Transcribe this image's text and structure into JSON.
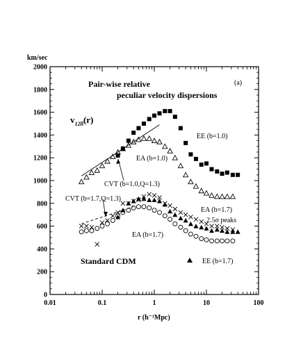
{
  "chart_data": {
    "type": "scatter",
    "title": "Pair-wise relative peculiar velocity dispersions",
    "title_lines": [
      "Pair-wise relative",
      "peculiar velocity dispersions"
    ],
    "panel_label": "(a)",
    "ylabel": "v12ll(r)",
    "ylabel_main": "v",
    "ylabel_sub": "12ll",
    "ylabel_tail": "(r)",
    "y_unit": "km/sec",
    "xlabel": "r (h⁻¹Mpc)",
    "xscale": "log",
    "xlim": [
      0.01,
      100
    ],
    "ylim": [
      0,
      2000
    ],
    "x_ticks": [
      "0.01",
      "0.1",
      "1",
      "10",
      "100"
    ],
    "y_ticks": [
      "0",
      "200",
      "400",
      "600",
      "800",
      "1000",
      "1200",
      "1400",
      "1600",
      "1800",
      "2000"
    ],
    "model_label": "Standard CDM",
    "series": [
      {
        "name": "EE (b=1.0)",
        "marker": "filled-square",
        "x": [
          0.2,
          0.25,
          0.32,
          0.4,
          0.5,
          0.63,
          0.8,
          1.0,
          1.26,
          1.6,
          2.0,
          2.5,
          3.2,
          4.0,
          5.0,
          6.3,
          8.0,
          10.0,
          12.6,
          16.0,
          20.0,
          25.0,
          32.0,
          40.0
        ],
        "y": [
          1220,
          1280,
          1350,
          1420,
          1460,
          1500,
          1540,
          1570,
          1590,
          1610,
          1610,
          1560,
          1460,
          1330,
          1230,
          1190,
          1140,
          1150,
          1100,
          1080,
          1060,
          1070,
          1050,
          1050
        ]
      },
      {
        "name": "EA (b=1.0)",
        "marker": "open-triangle",
        "x": [
          0.04,
          0.05,
          0.063,
          0.08,
          0.1,
          0.126,
          0.16,
          0.2,
          0.25,
          0.32,
          0.4,
          0.5,
          0.63,
          0.8,
          1.0,
          1.26,
          1.6,
          2.0,
          2.5,
          3.2,
          4.0,
          5.0,
          6.3,
          8.0,
          10.0,
          12.6,
          16.0,
          20.0,
          25.0,
          32.0
        ],
        "y": [
          990,
          1030,
          1070,
          1090,
          1130,
          1170,
          1210,
          1250,
          1280,
          1310,
          1340,
          1360,
          1370,
          1370,
          1350,
          1340,
          1300,
          1260,
          1200,
          1130,
          1050,
          990,
          950,
          910,
          890,
          870,
          860,
          860,
          860,
          860
        ]
      },
      {
        "name": "EE (b=1.7)",
        "marker": "filled-triangle",
        "x": [
          0.2,
          0.25,
          0.32,
          0.4,
          0.5,
          0.63,
          0.8,
          1.0,
          1.26,
          1.6,
          2.0,
          2.5,
          3.2,
          4.0,
          5.0,
          6.3,
          8.0,
          10.0,
          12.6,
          16.0,
          20.0,
          25.0,
          32.0,
          40.0
        ],
        "y": [
          680,
          740,
          800,
          820,
          840,
          840,
          830,
          830,
          820,
          790,
          730,
          700,
          670,
          650,
          620,
          600,
          590,
          580,
          560,
          570,
          560,
          550,
          550,
          550
        ]
      },
      {
        "name": "EA (b=1.7)",
        "marker": "open-circle",
        "x": [
          0.04,
          0.05,
          0.063,
          0.08,
          0.1,
          0.126,
          0.16,
          0.2,
          0.25,
          0.32,
          0.4,
          0.5,
          0.63,
          0.8,
          1.0,
          1.26,
          1.6,
          2.0,
          2.5,
          3.2,
          4.0,
          5.0,
          6.3,
          8.0,
          10.0,
          12.6,
          16.0,
          20.0,
          25.0,
          32.0
        ],
        "y": [
          550,
          560,
          560,
          580,
          600,
          620,
          650,
          690,
          720,
          740,
          760,
          770,
          770,
          760,
          740,
          720,
          690,
          660,
          620,
          590,
          560,
          530,
          510,
          490,
          480,
          470,
          470,
          470,
          470,
          470
        ]
      },
      {
        "name": "2.5σ peaks",
        "marker": "cross",
        "x": [
          0.04,
          0.05,
          0.063,
          0.08,
          0.1,
          0.126,
          0.16,
          0.2,
          0.25,
          0.32,
          0.4,
          0.5,
          0.63,
          0.8,
          1.0,
          1.26,
          1.6,
          2.0,
          2.5,
          3.2,
          4.0,
          5.0,
          6.3,
          8.0,
          10.0,
          12.6,
          16.0,
          20.0,
          25.0,
          32.0
        ],
        "y": [
          600,
          600,
          590,
          440,
          630,
          650,
          690,
          720,
          800,
          800,
          820,
          830,
          860,
          880,
          870,
          850,
          800,
          780,
          750,
          720,
          700,
          680,
          660,
          640,
          620,
          600,
          600,
          590,
          580,
          570
        ]
      }
    ],
    "fit_lines": [
      {
        "name": "CVT (b=1.0,Q=1.3)",
        "style": "solid",
        "x": [
          0.04,
          0.063,
          0.1,
          0.16,
          0.25,
          0.4,
          0.63,
          1.0,
          1.26
        ],
        "y": [
          1040,
          1100,
          1160,
          1220,
          1280,
          1340,
          1400,
          1460,
          1490
        ]
      },
      {
        "name": "CVT (b=1.7,Q=1.3)",
        "style": "dashed",
        "x": [
          0.04,
          0.063,
          0.1,
          0.16,
          0.25,
          0.4
        ],
        "y": [
          620,
          650,
          680,
          710,
          740,
          770
        ]
      }
    ],
    "annotations": [
      "EE (b=1.0)",
      "EA (b=1.0)",
      "CVT (b=1.0,Q=1.3)",
      "CVT (b=1.7,Q=1.3)",
      "EA (b=1.7)",
      "2.5σ peaks",
      "EA (b=1.7)",
      "EE (b=1.7)"
    ]
  }
}
